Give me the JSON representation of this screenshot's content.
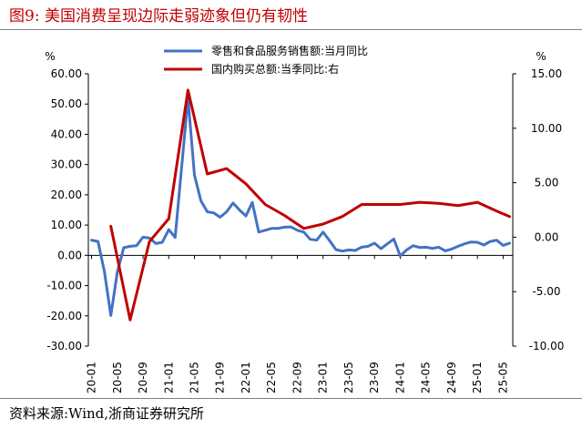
{
  "figure": {
    "title": "图9:  美国消费呈现边际走弱迹象但仍有韧性",
    "source": "资料来源:Wind,浙商证券研究所"
  },
  "colors": {
    "title": "#c00000",
    "series1": "#4472c4",
    "series2": "#c00000",
    "axis": "#000000"
  },
  "chart_data": {
    "type": "line",
    "grid": false,
    "legend_position": "top-center",
    "y_left": {
      "unit_label": "%",
      "range": [
        -30,
        60
      ],
      "ticks": [
        "60.00",
        "50.00",
        "40.00",
        "30.00",
        "20.00",
        "10.00",
        "0.00",
        "-10.00",
        "-20.00",
        "-30.00"
      ]
    },
    "y_right": {
      "unit_label": "%",
      "range": [
        -10,
        15
      ],
      "ticks": [
        "15.00",
        "10.00",
        "5.00",
        "0.00",
        "-5.00",
        "-10.00"
      ]
    },
    "x_ticks": [
      "20-01",
      "20-05",
      "20-09",
      "21-01",
      "21-05",
      "21-09",
      "22-01",
      "22-05",
      "22-09",
      "23-01",
      "23-05",
      "23-09",
      "24-01",
      "24-05",
      "24-09",
      "25-01",
      "25-05"
    ],
    "series": [
      {
        "name": "零售和食品服务销售额:当月同比",
        "axis": "left",
        "x": [
          "20-01",
          "20-02",
          "20-03",
          "20-04",
          "20-05",
          "20-06",
          "20-07",
          "20-08",
          "20-09",
          "20-10",
          "20-11",
          "20-12",
          "21-01",
          "21-02",
          "21-03",
          "21-04",
          "21-05",
          "21-06",
          "21-07",
          "21-08",
          "21-09",
          "21-10",
          "21-11",
          "21-12",
          "22-01",
          "22-02",
          "22-03",
          "22-04",
          "22-05",
          "22-06",
          "22-07",
          "22-08",
          "22-09",
          "22-10",
          "22-11",
          "22-12",
          "23-01",
          "23-02",
          "23-03",
          "23-04",
          "23-05",
          "23-06",
          "23-07",
          "23-08",
          "23-09",
          "23-10",
          "23-11",
          "23-12",
          "24-01",
          "24-02",
          "24-03",
          "24-04",
          "24-05",
          "24-06",
          "24-07",
          "24-08",
          "24-09",
          "24-10",
          "24-11",
          "24-12",
          "25-01",
          "25-02",
          "25-03",
          "25-04",
          "25-05",
          "25-06"
        ],
        "values": [
          5.0,
          4.6,
          -5.5,
          -19.9,
          -5.6,
          2.5,
          3.0,
          3.2,
          6.0,
          5.7,
          3.9,
          4.3,
          8.5,
          5.9,
          29.0,
          52.0,
          26.5,
          18.0,
          14.4,
          14.0,
          12.6,
          14.4,
          17.3,
          15.0,
          13.0,
          17.5,
          7.7,
          8.3,
          8.9,
          8.9,
          9.3,
          9.4,
          8.3,
          7.7,
          5.3,
          5.0,
          7.7,
          4.9,
          1.9,
          1.4,
          1.8,
          1.6,
          2.7,
          3.0,
          4.0,
          2.2,
          3.8,
          5.4,
          -0.2,
          1.8,
          3.2,
          2.6,
          2.7,
          2.3,
          2.7,
          1.5,
          2.1,
          3.0,
          3.8,
          4.4,
          4.3,
          3.4,
          4.6,
          5.0,
          3.3,
          4.0
        ]
      },
      {
        "name": "国内购买总额:当季同比:右",
        "axis": "right",
        "x": [
          "20-04",
          "20-07",
          "20-10",
          "21-01",
          "21-04",
          "21-07",
          "21-10",
          "22-01",
          "22-04",
          "22-07",
          "22-10",
          "23-01",
          "23-04",
          "23-07",
          "23-10",
          "24-01",
          "24-04",
          "24-07",
          "24-10",
          "25-01",
          "25-04",
          "25-06"
        ],
        "values": [
          1.0,
          -7.6,
          -0.4,
          1.7,
          13.5,
          5.8,
          6.3,
          4.9,
          3.0,
          2.0,
          0.8,
          1.2,
          1.9,
          3.0,
          3.0,
          3.0,
          3.2,
          3.1,
          2.9,
          3.2,
          2.4,
          1.9
        ]
      }
    ]
  }
}
